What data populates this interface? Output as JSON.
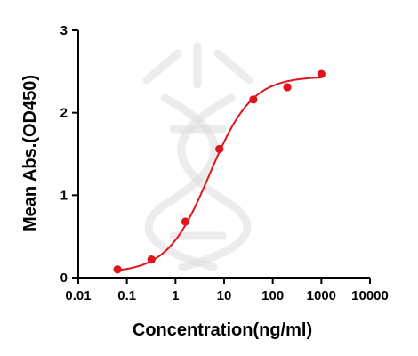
{
  "chart_data": {
    "type": "scatter",
    "xlabel": "Concentration(ng/ml)",
    "ylabel": "Mean Abs.(OD450)",
    "x_scale": "log",
    "xlim": [
      0.01,
      10000
    ],
    "ylim": [
      0,
      3
    ],
    "x_ticks": [
      "0.01",
      "0.1",
      "1",
      "10",
      "100",
      "1000",
      "10000"
    ],
    "y_ticks": [
      "0",
      "1",
      "2",
      "3"
    ],
    "grid": false,
    "series": [
      {
        "color": "#e0141b",
        "points": [
          {
            "x": 0.064,
            "y": 0.1
          },
          {
            "x": 0.32,
            "y": 0.22
          },
          {
            "x": 1.6,
            "y": 0.68
          },
          {
            "x": 8,
            "y": 1.56
          },
          {
            "x": 40,
            "y": 2.16
          },
          {
            "x": 200,
            "y": 2.31
          },
          {
            "x": 1000,
            "y": 2.47
          }
        ],
        "fit": {
          "model": "4PL",
          "bottom": 0.06,
          "top": 2.44,
          "ec50": 5,
          "hill": 1.0
        }
      }
    ]
  }
}
